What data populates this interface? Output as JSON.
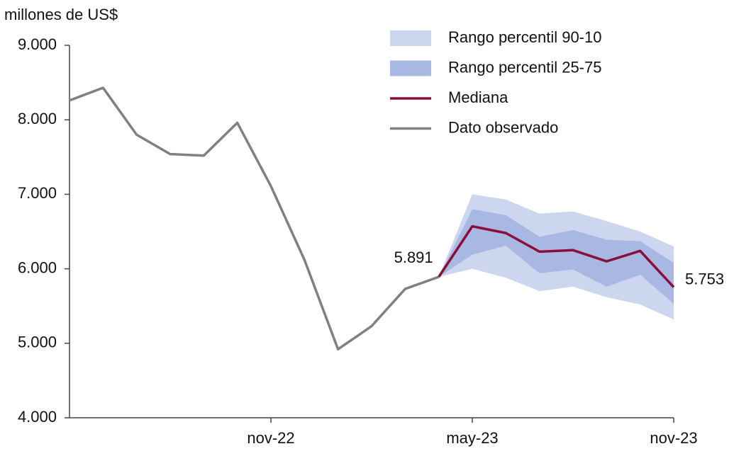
{
  "chart_data": {
    "type": "line",
    "y_axis_label": "millones de US$",
    "categories": [
      null,
      null,
      null,
      null,
      null,
      null,
      "nov-22",
      null,
      null,
      null,
      null,
      null,
      "may-23",
      null,
      null,
      null,
      null,
      null,
      "nov-23"
    ],
    "ylim": [
      4000,
      9000
    ],
    "yticks": [
      {
        "value": 4000,
        "label": "4.000"
      },
      {
        "value": 5000,
        "label": "5.000"
      },
      {
        "value": 6000,
        "label": "6.000"
      },
      {
        "value": 7000,
        "label": "7.000"
      },
      {
        "value": 8000,
        "label": "8.000"
      },
      {
        "value": 9000,
        "label": "9.000"
      }
    ],
    "grid": false,
    "legend": "top-right",
    "series": [
      {
        "name": "Rango percentil 90-10",
        "color": "#cdd6ef",
        "kind": "band",
        "lower": [
          null,
          null,
          null,
          null,
          null,
          null,
          null,
          null,
          null,
          null,
          null,
          5891,
          6000,
          5880,
          5700,
          5760,
          5620,
          5520,
          5320
        ],
        "upper": [
          null,
          null,
          null,
          null,
          null,
          null,
          null,
          null,
          null,
          null,
          null,
          5891,
          7000,
          6930,
          6740,
          6770,
          6640,
          6500,
          6300
        ]
      },
      {
        "name": "Rango percentil 25-75",
        "color": "#a9b7e3",
        "kind": "band",
        "lower": [
          null,
          null,
          null,
          null,
          null,
          null,
          null,
          null,
          null,
          null,
          null,
          5891,
          6190,
          6310,
          5940,
          5990,
          5760,
          5920,
          5530
        ],
        "upper": [
          null,
          null,
          null,
          null,
          null,
          null,
          null,
          null,
          null,
          null,
          null,
          5891,
          6800,
          6720,
          6430,
          6520,
          6390,
          6370,
          6080
        ]
      },
      {
        "name": "Mediana",
        "color": "#8b0d3a",
        "kind": "line",
        "values": [
          null,
          null,
          null,
          null,
          null,
          null,
          null,
          null,
          null,
          null,
          null,
          5891,
          6570,
          6480,
          6230,
          6250,
          6100,
          6240,
          5753
        ],
        "value_labels": [
          null,
          null,
          null,
          null,
          null,
          null,
          null,
          null,
          null,
          null,
          null,
          null,
          null,
          null,
          null,
          null,
          null,
          null,
          "5.753"
        ]
      },
      {
        "name": "Dato observado",
        "color": "#808080",
        "kind": "line",
        "values": [
          8260,
          8430,
          7800,
          7540,
          7520,
          7960,
          7110,
          6120,
          4920,
          5230,
          5730,
          5891,
          null,
          null,
          null,
          null,
          null,
          null,
          null
        ],
        "value_labels": [
          null,
          null,
          null,
          null,
          null,
          null,
          null,
          null,
          null,
          null,
          null,
          "5.891",
          null,
          null,
          null,
          null,
          null,
          null,
          null
        ]
      }
    ]
  }
}
